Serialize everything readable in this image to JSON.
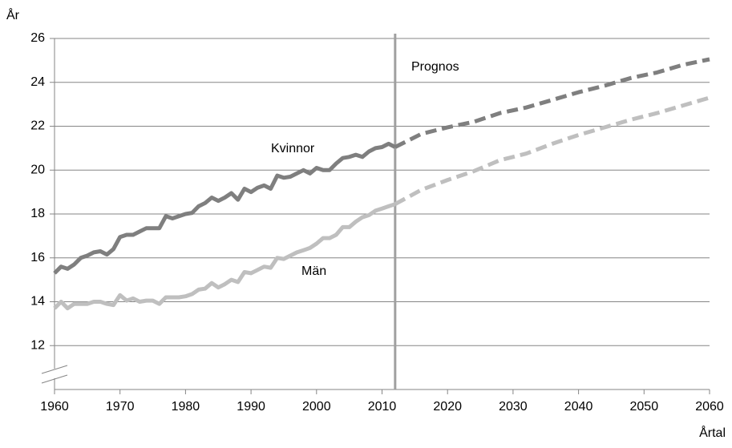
{
  "chart_data": {
    "type": "line",
    "y_label": "År",
    "x_label": "Årtal",
    "x": [
      1960,
      1961,
      1962,
      1963,
      1964,
      1965,
      1966,
      1967,
      1968,
      1969,
      1970,
      1971,
      1972,
      1973,
      1974,
      1975,
      1976,
      1977,
      1978,
      1979,
      1980,
      1981,
      1982,
      1983,
      1984,
      1985,
      1986,
      1987,
      1988,
      1989,
      1990,
      1991,
      1992,
      1993,
      1994,
      1995,
      1996,
      1997,
      1998,
      1999,
      2000,
      2001,
      2002,
      2003,
      2004,
      2005,
      2006,
      2007,
      2008,
      2009,
      2010,
      2011,
      2012,
      2016,
      2020,
      2024,
      2028,
      2032,
      2036,
      2040,
      2044,
      2048,
      2052,
      2056,
      2060
    ],
    "forecast_start": 2012,
    "forecast_label": "Prognos",
    "series": [
      {
        "name": "Kvinnor",
        "color": "#7f7f7f",
        "values": [
          15.3,
          15.6,
          15.5,
          15.7,
          16.0,
          16.1,
          16.25,
          16.3,
          16.15,
          16.4,
          16.95,
          17.05,
          17.05,
          17.2,
          17.35,
          17.35,
          17.35,
          17.9,
          17.8,
          17.9,
          18.0,
          18.05,
          18.35,
          18.5,
          18.75,
          18.6,
          18.75,
          18.95,
          18.65,
          19.15,
          19.0,
          19.2,
          19.3,
          19.15,
          19.75,
          19.65,
          19.7,
          19.85,
          20.0,
          19.85,
          20.1,
          20.0,
          20.0,
          20.3,
          20.55,
          20.6,
          20.7,
          20.6,
          20.85,
          21.0,
          21.05,
          21.2,
          21.05,
          21.65,
          21.95,
          22.2,
          22.6,
          22.85,
          23.2,
          23.55,
          23.85,
          24.2,
          24.45,
          24.8,
          25.05
        ]
      },
      {
        "name": "Män",
        "color": "#bfbfbf",
        "values": [
          13.7,
          14.0,
          13.7,
          13.9,
          13.9,
          13.9,
          14.0,
          14.0,
          13.9,
          13.85,
          14.3,
          14.05,
          14.15,
          14.0,
          14.05,
          14.05,
          13.9,
          14.2,
          14.2,
          14.2,
          14.25,
          14.35,
          14.55,
          14.6,
          14.85,
          14.65,
          14.8,
          15.0,
          14.9,
          15.35,
          15.3,
          15.45,
          15.6,
          15.55,
          16.0,
          15.95,
          16.1,
          16.25,
          16.35,
          16.45,
          16.65,
          16.9,
          16.9,
          17.05,
          17.4,
          17.4,
          17.65,
          17.85,
          17.95,
          18.15,
          18.25,
          18.35,
          18.45,
          19.1,
          19.55,
          19.95,
          20.45,
          20.75,
          21.2,
          21.6,
          21.95,
          22.3,
          22.6,
          22.95,
          23.3
        ]
      }
    ],
    "xlim": [
      1960,
      2060
    ],
    "xticks": [
      1960,
      1970,
      1980,
      1990,
      2000,
      2010,
      2020,
      2030,
      2040,
      2050,
      2060
    ],
    "ylim": [
      10,
      26
    ],
    "yticks": [
      12,
      14,
      16,
      18,
      20,
      22,
      24,
      26
    ],
    "grid": true
  }
}
